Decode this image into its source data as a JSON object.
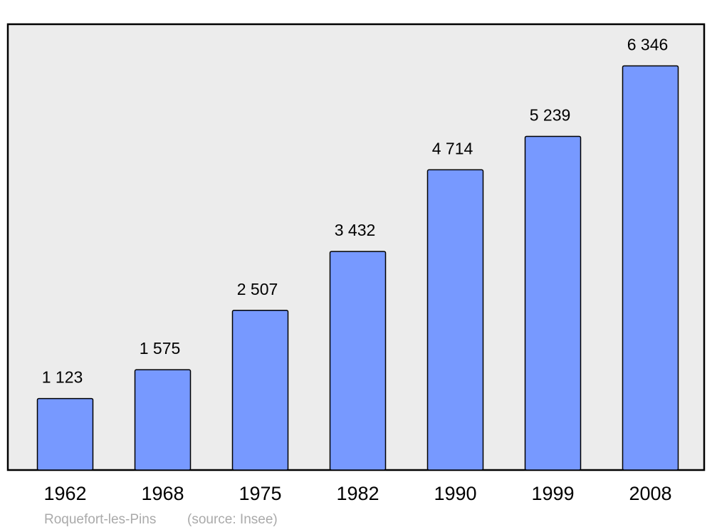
{
  "chart_data": {
    "type": "bar",
    "title": "Roquefort-les-Pins",
    "source": "(source: Insee)",
    "categories": [
      "1962",
      "1968",
      "1975",
      "1982",
      "1990",
      "1999",
      "2008"
    ],
    "values": [
      1123,
      1575,
      2507,
      3432,
      4714,
      5239,
      6346
    ],
    "value_labels": [
      "1 123",
      "1 575",
      "2 507",
      "3 432",
      "4 714",
      "5 239",
      "6 346"
    ],
    "color": "#7799ff",
    "ylim": [
      0,
      7000
    ]
  }
}
